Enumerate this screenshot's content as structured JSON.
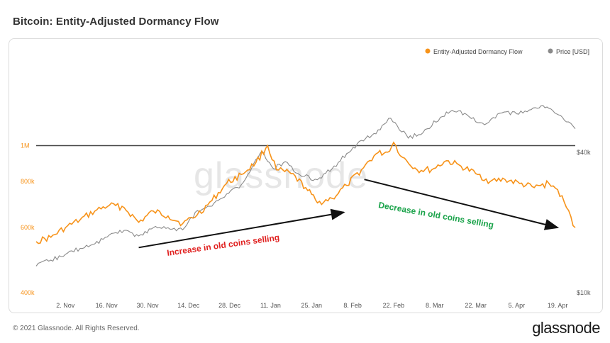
{
  "title": "Bitcoin: Entity-Adjusted Dormancy Flow",
  "footer": {
    "copyright": "© 2021 Glassnode. All Rights Reserved.",
    "brand": "glassnode"
  },
  "watermark": "glassnode",
  "colors": {
    "dormancy": "#f7931a",
    "price": "#8a8a8a",
    "threshold": "#444444",
    "red_annotation": "#e0201f",
    "green_annotation": "#1aa34a"
  },
  "chart_data": {
    "type": "line",
    "title": "Bitcoin: Entity-Adjusted Dormancy Flow",
    "legend_position": "top-right",
    "x_ticks": [
      "2. Nov",
      "16. Nov",
      "30. Nov",
      "14. Dec",
      "28. Dec",
      "11. Jan",
      "25. Jan",
      "8. Feb",
      "22. Feb",
      "8. Mar",
      "22. Mar",
      "5. Apr",
      "19. Apr"
    ],
    "left_axis": {
      "scale": "log",
      "ticks": [
        "400k",
        "600k",
        "800k",
        "1M"
      ],
      "range": [
        400000,
        1600000
      ]
    },
    "right_axis": {
      "scale": "log",
      "ticks": [
        "$10k",
        "$40k"
      ],
      "range": [
        10000,
        90000
      ]
    },
    "threshold_line": {
      "axis": "left",
      "value": 1000000
    },
    "series": [
      {
        "name": "Entity-Adjusted Dormancy Flow",
        "axis": "left",
        "x": [
          "2020-10-23",
          "2020-10-28",
          "2020-11-02",
          "2020-11-07",
          "2020-11-12",
          "2020-11-17",
          "2020-11-22",
          "2020-11-27",
          "2020-12-02",
          "2020-12-07",
          "2020-12-12",
          "2020-12-17",
          "2020-12-22",
          "2020-12-27",
          "2021-01-01",
          "2021-01-06",
          "2021-01-10",
          "2021-01-13",
          "2021-01-18",
          "2021-01-23",
          "2021-01-27",
          "2021-02-01",
          "2021-02-06",
          "2021-02-11",
          "2021-02-16",
          "2021-02-20",
          "2021-02-22",
          "2021-02-25",
          "2021-03-02",
          "2021-03-07",
          "2021-03-12",
          "2021-03-17",
          "2021-03-22",
          "2021-03-27",
          "2021-04-01",
          "2021-04-06",
          "2021-04-11",
          "2021-04-16",
          "2021-04-19",
          "2021-04-22",
          "2021-04-25"
        ],
        "y": [
          550000,
          565000,
          600000,
          630000,
          665000,
          690000,
          680000,
          620000,
          665000,
          645000,
          615000,
          650000,
          710000,
          790000,
          835000,
          900000,
          1000000,
          860000,
          840000,
          770000,
          700000,
          720000,
          780000,
          860000,
          950000,
          960000,
          1020000,
          930000,
          860000,
          860000,
          910000,
          880000,
          840000,
          800000,
          810000,
          790000,
          770000,
          790000,
          760000,
          680000,
          600000
        ]
      },
      {
        "name": "Price [USD]",
        "axis": "right",
        "x": [
          "2020-10-23",
          "2020-10-28",
          "2020-11-02",
          "2020-11-07",
          "2020-11-12",
          "2020-11-17",
          "2020-11-22",
          "2020-11-27",
          "2020-12-02",
          "2020-12-07",
          "2020-12-12",
          "2020-12-17",
          "2020-12-22",
          "2020-12-27",
          "2021-01-01",
          "2021-01-04",
          "2021-01-08",
          "2021-01-12",
          "2021-01-16",
          "2021-01-21",
          "2021-01-27",
          "2021-02-01",
          "2021-02-06",
          "2021-02-11",
          "2021-02-16",
          "2021-02-21",
          "2021-02-27",
          "2021-03-04",
          "2021-03-10",
          "2021-03-14",
          "2021-03-19",
          "2021-03-25",
          "2021-03-31",
          "2021-04-05",
          "2021-04-10",
          "2021-04-14",
          "2021-04-18",
          "2021-04-22",
          "2021-04-25"
        ],
        "y": [
          13000,
          13800,
          14600,
          15500,
          16200,
          17700,
          18500,
          17500,
          19000,
          19000,
          18600,
          22500,
          23500,
          26500,
          29000,
          33000,
          40500,
          34000,
          36500,
          32000,
          30500,
          34000,
          39500,
          45000,
          48000,
          56000,
          46000,
          48500,
          56500,
          60500,
          58000,
          52500,
          59000,
          58500,
          61000,
          63500,
          59000,
          54000,
          50500
        ]
      }
    ],
    "annotations": [
      {
        "text": "Increase in old coins selling",
        "color": "red",
        "arrow_from": [
          "2020-11-27",
          530000
        ],
        "arrow_to": [
          "2021-02-05",
          660000
        ]
      },
      {
        "text": "Decrease in old coins selling",
        "color": "green",
        "arrow_from": [
          "2021-02-12",
          810000
        ],
        "arrow_to": [
          "2021-04-19",
          600000
        ]
      }
    ]
  }
}
